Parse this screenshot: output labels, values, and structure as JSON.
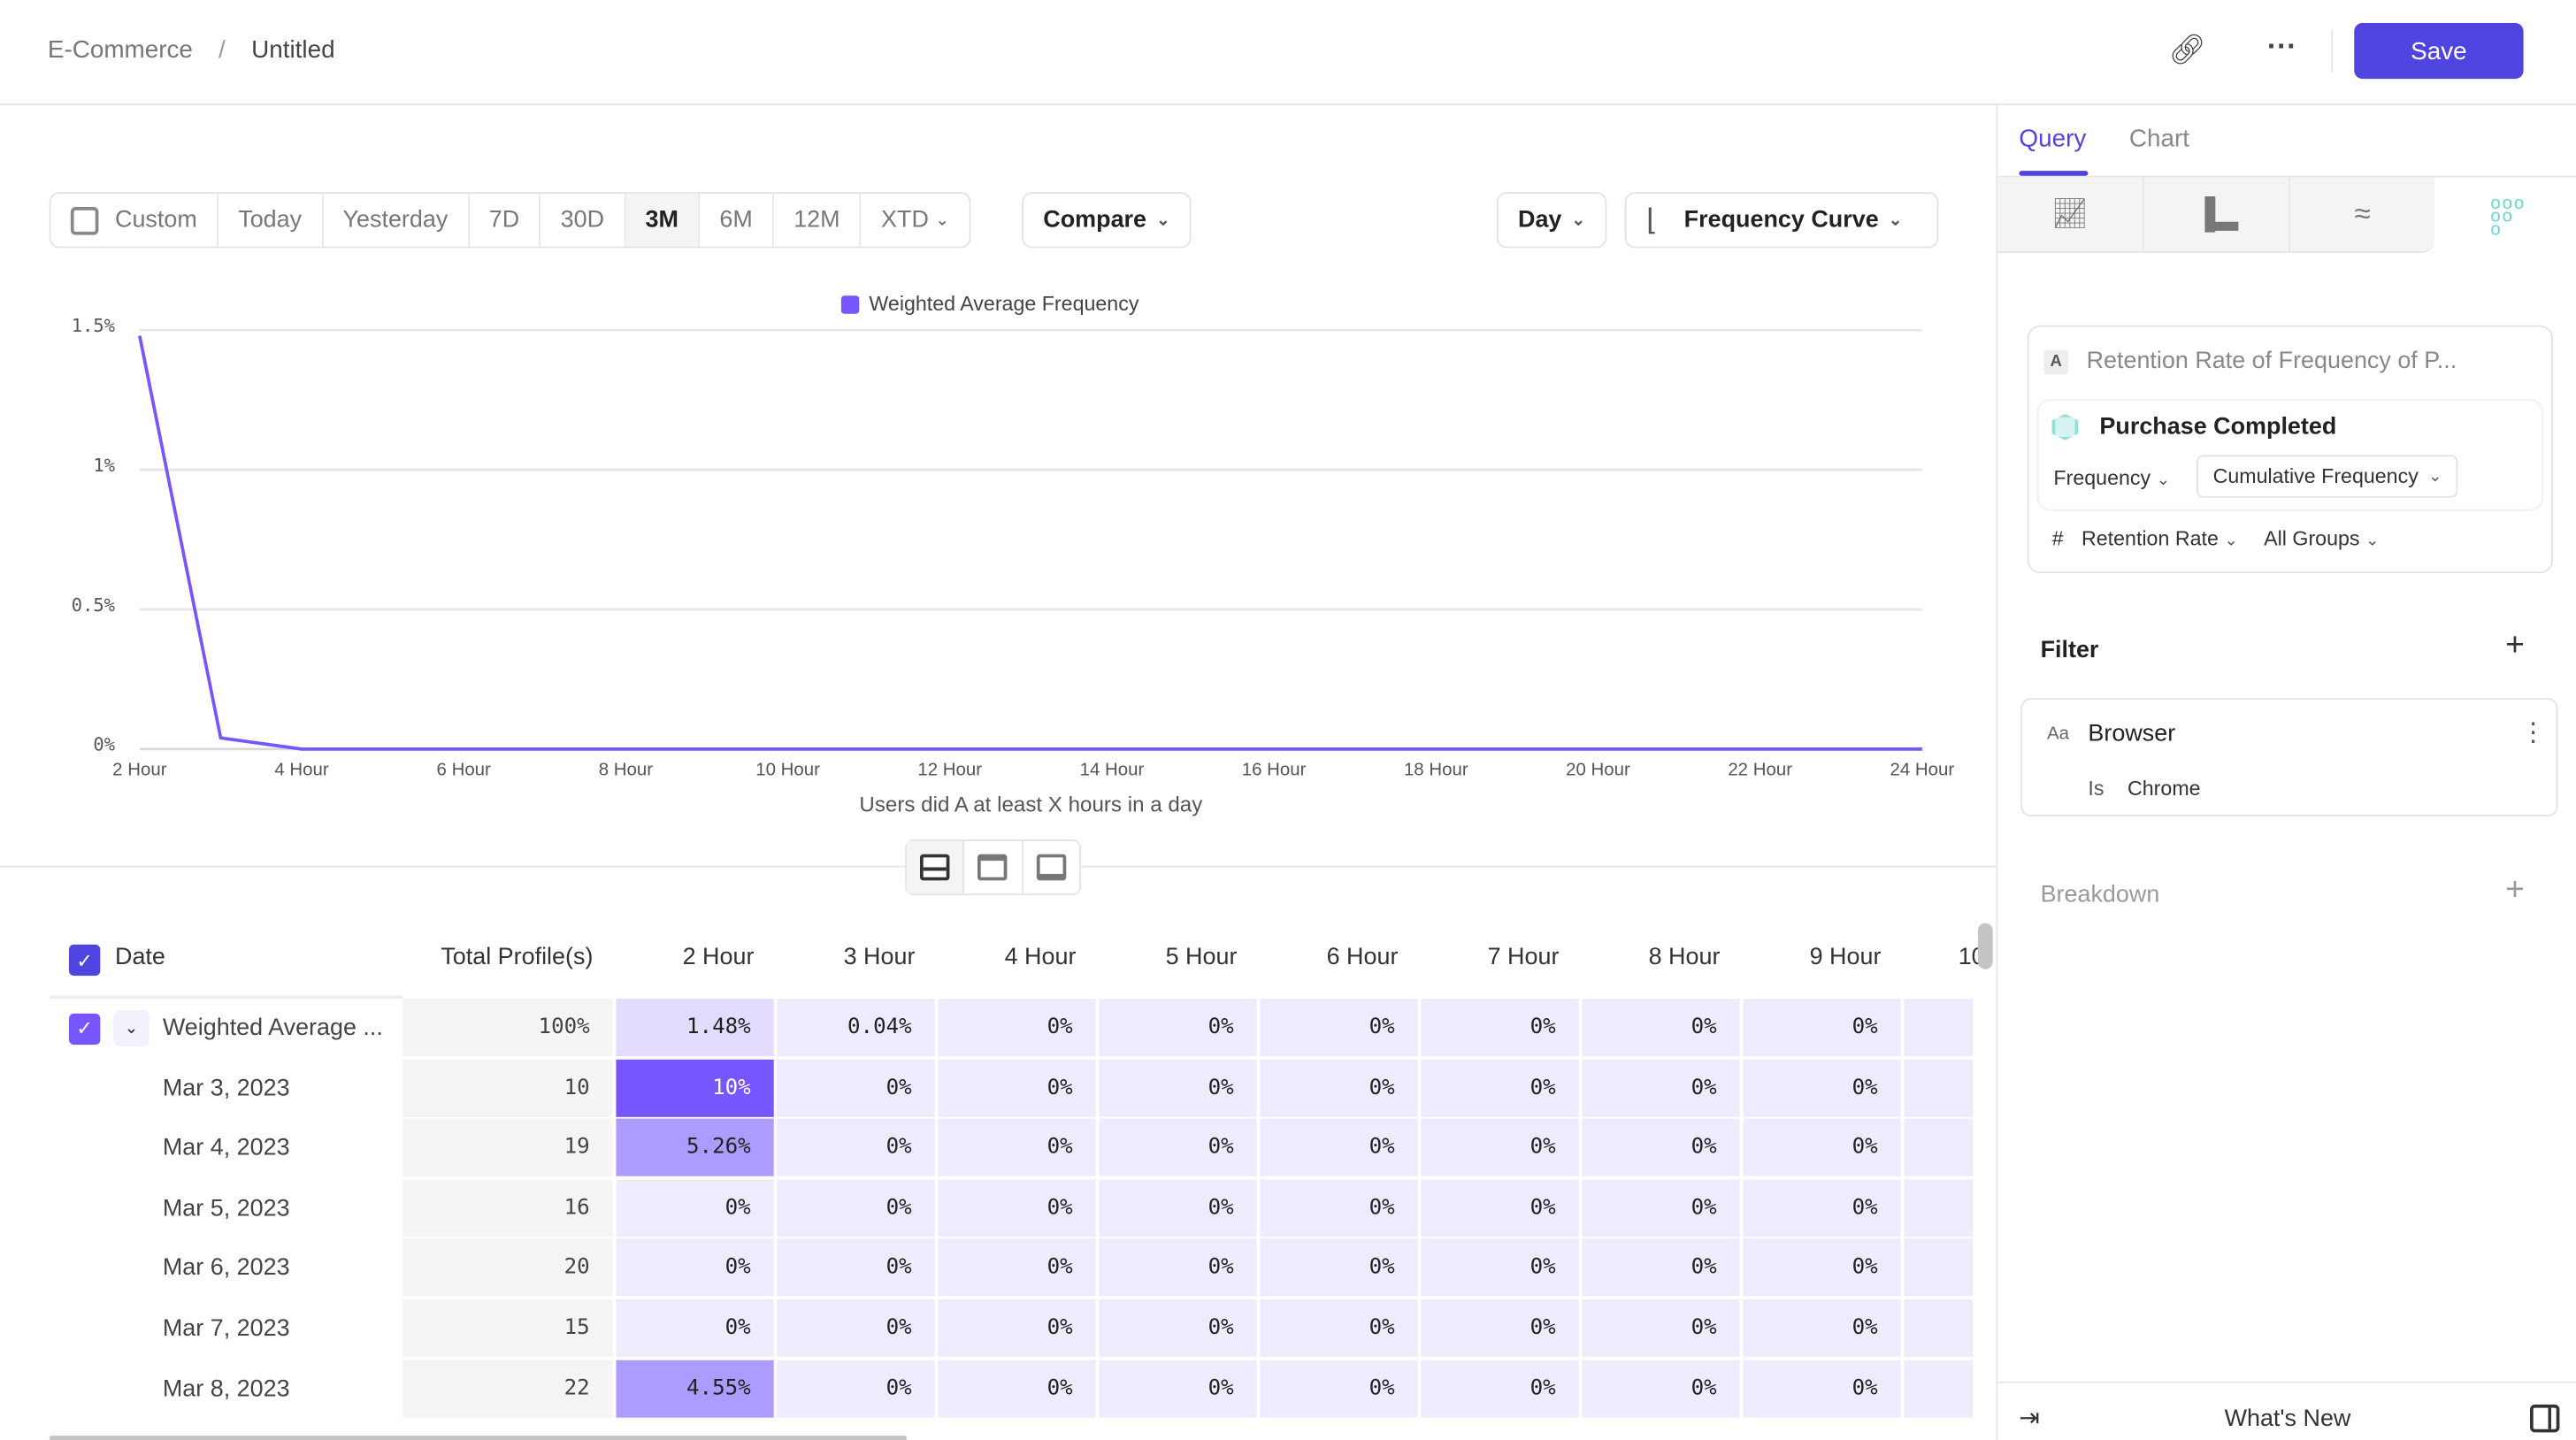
{
  "header": {
    "breadcrumb_parent": "E-Commerce",
    "separator": "/",
    "title": "Untitled",
    "save_label": "Save"
  },
  "date_range": {
    "options": [
      "Custom",
      "Today",
      "Yesterday",
      "7D",
      "30D",
      "3M",
      "6M",
      "12M",
      "XTD"
    ],
    "selected": "3M",
    "compare_label": "Compare"
  },
  "controls": {
    "interval": "Day",
    "chart_type": "Frequency Curve"
  },
  "chart_data": {
    "type": "line",
    "legend_position": "top",
    "grid": true,
    "series": [
      {
        "name": "Weighted Average Frequency",
        "color": "#7856ff",
        "x": [
          2,
          3,
          4,
          5,
          6,
          7,
          8,
          9,
          10,
          11,
          12,
          13,
          14,
          15,
          16,
          17,
          18,
          19,
          20,
          21,
          22,
          23,
          24
        ],
        "values": [
          1.48,
          0.04,
          0,
          0,
          0,
          0,
          0,
          0,
          0,
          0,
          0,
          0,
          0,
          0,
          0,
          0,
          0,
          0,
          0,
          0,
          0,
          0,
          0
        ]
      }
    ],
    "y_ticks": [
      {
        "value": 0,
        "label": "0%"
      },
      {
        "value": 0.5,
        "label": "0.5%"
      },
      {
        "value": 1,
        "label": "1%"
      },
      {
        "value": 1.5,
        "label": "1.5%"
      }
    ],
    "x_ticks": [
      {
        "value": 2,
        "label": "2 Hour"
      },
      {
        "value": 4,
        "label": "4 Hour"
      },
      {
        "value": 6,
        "label": "6 Hour"
      },
      {
        "value": 8,
        "label": "8 Hour"
      },
      {
        "value": 10,
        "label": "10 Hour"
      },
      {
        "value": 12,
        "label": "12 Hour"
      },
      {
        "value": 14,
        "label": "14 Hour"
      },
      {
        "value": 16,
        "label": "16 Hour"
      },
      {
        "value": 18,
        "label": "18 Hour"
      },
      {
        "value": 20,
        "label": "20 Hour"
      },
      {
        "value": 22,
        "label": "22 Hour"
      },
      {
        "value": 24,
        "label": "24 Hour"
      }
    ],
    "xlabel": "Users did A at least X hours in a day",
    "ylim": [
      0,
      1.5
    ],
    "xlim": [
      2,
      24
    ]
  },
  "table": {
    "headers": [
      "Date",
      "Total Profile(s)",
      "2 Hour",
      "3 Hour",
      "4 Hour",
      "5 Hour",
      "6 Hour",
      "7 Hour",
      "8 Hour",
      "9 Hour",
      "10"
    ],
    "rows": [
      {
        "date": "Weighted Average ...",
        "total": "100%",
        "cells": [
          "1.48%",
          "0.04%",
          "0%",
          "0%",
          "0%",
          "0%",
          "0%",
          "0%"
        ],
        "summary": true
      },
      {
        "date": "Mar 3, 2023",
        "total": "10",
        "cells": [
          "10%",
          "0%",
          "0%",
          "0%",
          "0%",
          "0%",
          "0%",
          "0%"
        ]
      },
      {
        "date": "Mar 4, 2023",
        "total": "19",
        "cells": [
          "5.26%",
          "0%",
          "0%",
          "0%",
          "0%",
          "0%",
          "0%",
          "0%"
        ]
      },
      {
        "date": "Mar 5, 2023",
        "total": "16",
        "cells": [
          "0%",
          "0%",
          "0%",
          "0%",
          "0%",
          "0%",
          "0%",
          "0%"
        ]
      },
      {
        "date": "Mar 6, 2023",
        "total": "20",
        "cells": [
          "0%",
          "0%",
          "0%",
          "0%",
          "0%",
          "0%",
          "0%",
          "0%"
        ]
      },
      {
        "date": "Mar 7, 2023",
        "total": "15",
        "cells": [
          "0%",
          "0%",
          "0%",
          "0%",
          "0%",
          "0%",
          "0%",
          "0%"
        ]
      },
      {
        "date": "Mar 8, 2023",
        "total": "22",
        "cells": [
          "4.55%",
          "0%",
          "0%",
          "0%",
          "0%",
          "0%",
          "0%",
          "0%"
        ]
      }
    ]
  },
  "panel": {
    "tabs": [
      "Query",
      "Chart"
    ],
    "active_tab": "Query",
    "metric": {
      "letter": "A",
      "title": "Retention Rate of Frequency of P...",
      "event": "Purchase Completed",
      "measure": "Frequency",
      "frequency_type": "Cumulative Frequency",
      "hash": "#",
      "aggregation": "Retention Rate",
      "groups": "All Groups"
    },
    "filter": {
      "title": "Filter",
      "property_type": "Aa",
      "property": "Browser",
      "operator": "Is",
      "value": "Chrome"
    },
    "breakdown": {
      "title": "Breakdown"
    },
    "footer": {
      "whats_new": "What's New"
    }
  },
  "colors": {
    "accent": "#4f44e0",
    "series": "#7856ff",
    "teal": "#6dd5cc"
  }
}
